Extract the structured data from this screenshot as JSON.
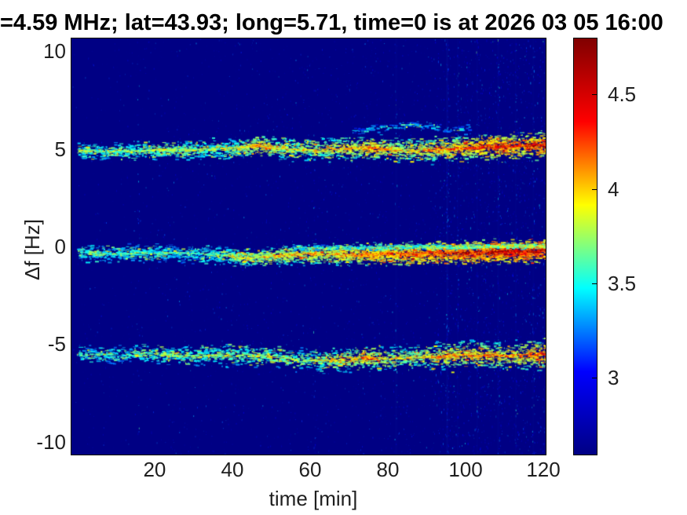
{
  "title": "=4.59 MHz;  lat=43.93; long=5.71, time=0 is at 2026 03 05 16:00",
  "colors": {
    "title_text": "#000000",
    "tick_text": "#1f1f1f",
    "plot_background": "#000084"
  },
  "chart_data": {
    "type": "heatmap",
    "title": "=4.59 MHz;  lat=43.93; long=5.71, time=0 is at 2026 03 05 16:00",
    "xlabel": "time [min]",
    "ylabel": "Δf [Hz]",
    "xlim": [
      -1.6,
      120.8
    ],
    "ylim": [
      -10.7,
      10.7
    ],
    "xticks": [
      20,
      40,
      60,
      80,
      100,
      120
    ],
    "yticks": [
      10,
      5,
      0,
      -5,
      -10
    ],
    "grid": false,
    "colormap": "jet",
    "colorbar": {
      "min": 2.59,
      "max": 4.8,
      "ticks": [
        4.5,
        4,
        3.5,
        3
      ],
      "gradient_bottom_to_top": [
        "#000084",
        "#0000ff",
        "#00ffff",
        "#ffff00",
        "#ff0000",
        "#800000"
      ],
      "position": "right"
    },
    "background_value_color": "#000084",
    "bands": [
      {
        "name": "doppler-trace-plus5Hz",
        "t": [
          0,
          8,
          16,
          24,
          32,
          40,
          46,
          52,
          60,
          68,
          76,
          84,
          92,
          100,
          108,
          114,
          121
        ],
        "f": [
          4.95,
          4.9,
          4.95,
          5.0,
          5.0,
          5.05,
          5.2,
          5.05,
          5.0,
          5.05,
          5.1,
          4.95,
          5.0,
          5.1,
          5.2,
          5.2,
          5.25
        ],
        "intensity": [
          0.45,
          0.4,
          0.45,
          0.5,
          0.45,
          0.5,
          0.7,
          0.55,
          0.55,
          0.6,
          0.75,
          0.6,
          0.7,
          0.8,
          0.9,
          0.85,
          0.95
        ],
        "sigma": 0.3,
        "density": 22,
        "core": 0.55,
        "spread": 1.8
      },
      {
        "name": "doppler-trace-faint-plus6Hz",
        "t": [
          71,
          78,
          86,
          94,
          101
        ],
        "f": [
          5.95,
          6.15,
          6.3,
          6.1,
          6.0
        ],
        "intensity": [
          0.15,
          0.2,
          0.22,
          0.18,
          0.15
        ],
        "sigma": 0.18,
        "density": 9,
        "core": 0.15,
        "spread": 1.0
      },
      {
        "name": "doppler-trace-0Hz",
        "t": [
          0,
          8,
          16,
          24,
          30,
          36,
          42,
          48,
          54,
          62,
          70,
          78,
          86,
          94,
          102,
          110,
          121
        ],
        "f": [
          -0.3,
          -0.35,
          -0.3,
          -0.3,
          -0.35,
          -0.4,
          -0.55,
          -0.5,
          -0.4,
          -0.35,
          -0.4,
          -0.35,
          -0.35,
          -0.3,
          -0.3,
          -0.25,
          -0.2
        ],
        "intensity": [
          0.4,
          0.35,
          0.4,
          0.33,
          0.3,
          0.4,
          0.55,
          0.6,
          0.6,
          0.65,
          0.7,
          0.8,
          0.85,
          0.9,
          0.95,
          1.0,
          1.0
        ],
        "sigma": 0.3,
        "density": 24,
        "core": 0.5,
        "spread": 1.6
      },
      {
        "name": "doppler-trace-0Hz-upper-line",
        "t": [
          55,
          70,
          85,
          100,
          110,
          121
        ],
        "f": [
          -0.05,
          -0.05,
          0.0,
          0.0,
          0.05,
          0.05
        ],
        "intensity": [
          0.3,
          0.35,
          0.4,
          0.45,
          0.5,
          0.55
        ],
        "sigma": 0.12,
        "density": 10,
        "core": 0.4,
        "spread": 1.0
      },
      {
        "name": "doppler-trace-minus5Hz",
        "t": [
          0,
          8,
          16,
          24,
          32,
          40,
          48,
          56,
          62,
          68,
          74,
          80,
          88,
          96,
          104,
          112,
          121
        ],
        "f": [
          -5.5,
          -5.55,
          -5.5,
          -5.55,
          -5.6,
          -5.55,
          -5.6,
          -5.75,
          -5.85,
          -5.8,
          -5.7,
          -5.75,
          -5.65,
          -5.6,
          -5.55,
          -5.6,
          -5.5
        ],
        "intensity": [
          0.35,
          0.3,
          0.4,
          0.45,
          0.45,
          0.5,
          0.5,
          0.45,
          0.5,
          0.6,
          0.7,
          0.55,
          0.6,
          0.7,
          0.75,
          0.7,
          0.85
        ],
        "sigma": 0.3,
        "density": 20,
        "core": 0.45,
        "spread": 2.0
      }
    ],
    "vertical_streaks": [
      {
        "t": 15.5,
        "strength": 0.12
      },
      {
        "t": 61.0,
        "strength": 0.1
      },
      {
        "t": 82.0,
        "strength": 0.18
      },
      {
        "t": 95.3,
        "strength": 0.45
      },
      {
        "t": 98.0,
        "strength": 0.2
      },
      {
        "t": 103.0,
        "strength": 0.22
      },
      {
        "t": 108.5,
        "strength": 0.3
      },
      {
        "t": 113.0,
        "strength": 0.2
      },
      {
        "t": 117.5,
        "strength": 0.22
      },
      {
        "t": 120.0,
        "strength": 0.15
      }
    ],
    "noise": {
      "base_count": 3000,
      "right_extra_count": 900,
      "right_extra_t_start": 92
    }
  }
}
